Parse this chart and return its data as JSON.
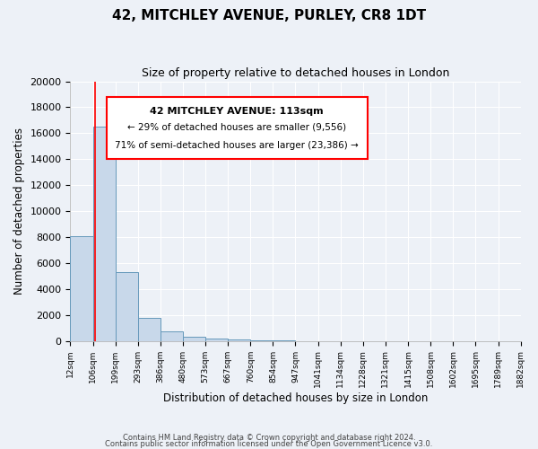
{
  "title1": "42, MITCHLEY AVENUE, PURLEY, CR8 1DT",
  "title2": "Size of property relative to detached houses in London",
  "xlabel": "Distribution of detached houses by size in London",
  "ylabel": "Number of detached properties",
  "bin_labels": [
    "12sqm",
    "106sqm",
    "199sqm",
    "293sqm",
    "386sqm",
    "480sqm",
    "573sqm",
    "667sqm",
    "760sqm",
    "854sqm",
    "947sqm",
    "1041sqm",
    "1134sqm",
    "1228sqm",
    "1321sqm",
    "1415sqm",
    "1508sqm",
    "1602sqm",
    "1695sqm",
    "1789sqm",
    "1882sqm"
  ],
  "bin_edges": [
    12,
    106,
    199,
    293,
    386,
    480,
    573,
    667,
    760,
    854,
    947,
    1041,
    1134,
    1228,
    1321,
    1415,
    1508,
    1602,
    1695,
    1789,
    1882
  ],
  "bar_heights": [
    8100,
    16500,
    5300,
    1800,
    750,
    300,
    150,
    100,
    70,
    50,
    0,
    0,
    0,
    0,
    0,
    0,
    0,
    0,
    0,
    0
  ],
  "bar_color": "#c8d8ea",
  "bar_edge_color": "#6699bb",
  "red_line_x": 113,
  "ylim": [
    0,
    20000
  ],
  "yticks": [
    0,
    2000,
    4000,
    6000,
    8000,
    10000,
    12000,
    14000,
    16000,
    18000,
    20000
  ],
  "annotation_title": "42 MITCHLEY AVENUE: 113sqm",
  "annotation_line1": "← 29% of detached houses are smaller (9,556)",
  "annotation_line2": "71% of semi-detached houses are larger (23,386) →",
  "bg_color": "#edf1f7",
  "grid_color": "#ffffff",
  "footer1": "Contains HM Land Registry data © Crown copyright and database right 2024.",
  "footer2": "Contains public sector information licensed under the Open Government Licence v3.0."
}
